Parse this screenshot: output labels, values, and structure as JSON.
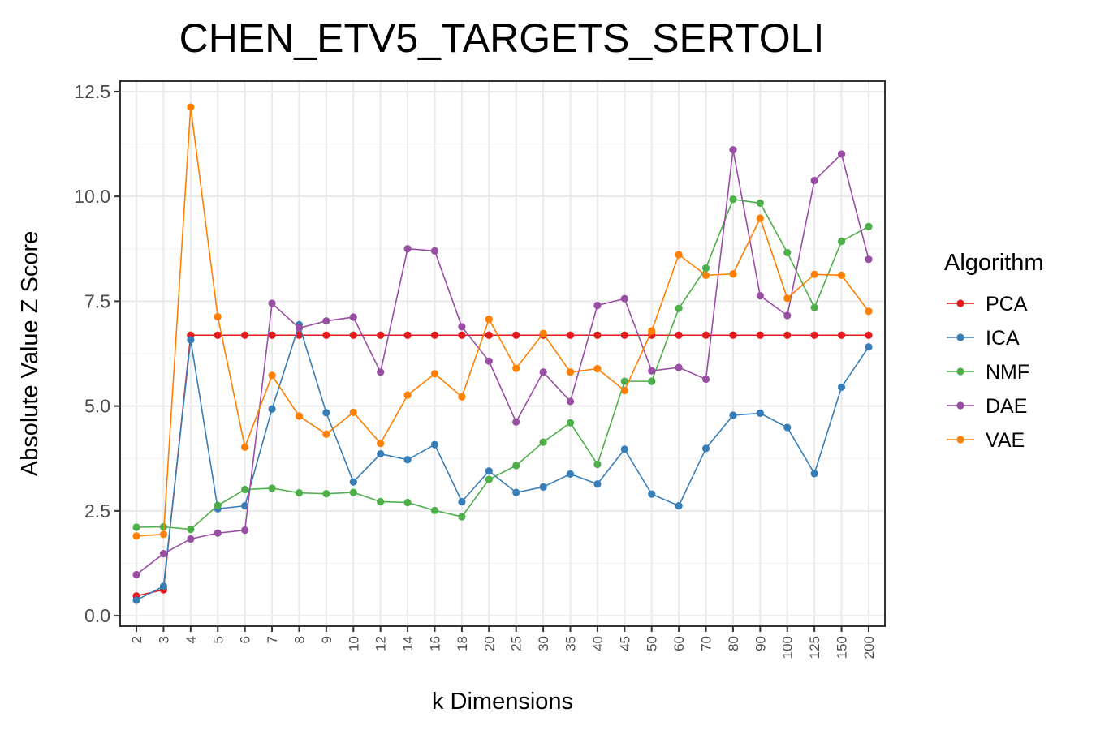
{
  "chart_data": {
    "type": "line",
    "title": "CHEN_ETV5_TARGETS_SERTOLI",
    "xlabel": "k Dimensions",
    "ylabel": "Absolute Value Z Score",
    "x_scale": "categorical",
    "categories": [
      "2",
      "3",
      "4",
      "5",
      "6",
      "7",
      "8",
      "9",
      "10",
      "12",
      "14",
      "16",
      "18",
      "20",
      "25",
      "30",
      "35",
      "40",
      "45",
      "50",
      "60",
      "70",
      "80",
      "90",
      "100",
      "125",
      "150",
      "200"
    ],
    "ylim": [
      -0.25,
      12.75
    ],
    "yticks": [
      0.0,
      2.5,
      5.0,
      7.5,
      10.0,
      12.5
    ],
    "ytick_labels": [
      "0.0",
      "2.5",
      "5.0",
      "7.5",
      "10.0",
      "12.5"
    ],
    "grid": true,
    "legend": {
      "title": "Algorithm",
      "position": "right"
    },
    "series": [
      {
        "name": "PCA",
        "color": "#E41A1C",
        "values": [
          0.47,
          0.62,
          6.69,
          6.69,
          6.69,
          6.69,
          6.69,
          6.69,
          6.69,
          6.69,
          6.69,
          6.69,
          6.69,
          6.69,
          6.69,
          6.69,
          6.69,
          6.69,
          6.69,
          6.69,
          6.69,
          6.69,
          6.69,
          6.69,
          6.69,
          6.69,
          6.69,
          6.69
        ]
      },
      {
        "name": "ICA",
        "color": "#377EB8",
        "values": [
          0.37,
          0.7,
          6.58,
          2.55,
          2.62,
          4.93,
          6.94,
          4.84,
          3.19,
          3.86,
          3.72,
          4.08,
          2.72,
          3.45,
          2.94,
          3.07,
          3.38,
          3.14,
          3.97,
          2.9,
          2.62,
          3.99,
          4.78,
          4.83,
          4.49,
          3.39,
          5.45,
          6.41
        ]
      },
      {
        "name": "NMF",
        "color": "#4DAF4A",
        "values": [
          2.11,
          2.12,
          2.06,
          2.63,
          3.01,
          3.04,
          2.93,
          2.91,
          2.94,
          2.72,
          2.7,
          2.51,
          2.36,
          3.25,
          3.58,
          4.14,
          4.6,
          3.61,
          5.59,
          5.59,
          7.33,
          8.29,
          9.93,
          9.84,
          8.66,
          7.35,
          8.93,
          9.28
        ]
      },
      {
        "name": "DAE",
        "color": "#984EA3",
        "values": [
          0.98,
          1.48,
          1.83,
          1.97,
          2.04,
          7.45,
          6.86,
          7.03,
          7.12,
          5.81,
          8.75,
          8.7,
          6.89,
          6.07,
          4.62,
          5.81,
          5.11,
          7.4,
          7.56,
          5.84,
          5.92,
          5.64,
          11.11,
          7.63,
          7.16,
          10.38,
          11.01,
          8.5
        ]
      },
      {
        "name": "VAE",
        "color": "#FF7F00",
        "values": [
          1.9,
          1.94,
          12.13,
          7.13,
          4.02,
          5.73,
          4.76,
          4.33,
          4.85,
          4.11,
          5.26,
          5.77,
          5.22,
          7.07,
          5.9,
          6.73,
          5.81,
          5.89,
          5.37,
          6.79,
          8.61,
          8.12,
          8.15,
          9.48,
          7.57,
          8.14,
          8.12,
          7.26
        ]
      }
    ]
  }
}
